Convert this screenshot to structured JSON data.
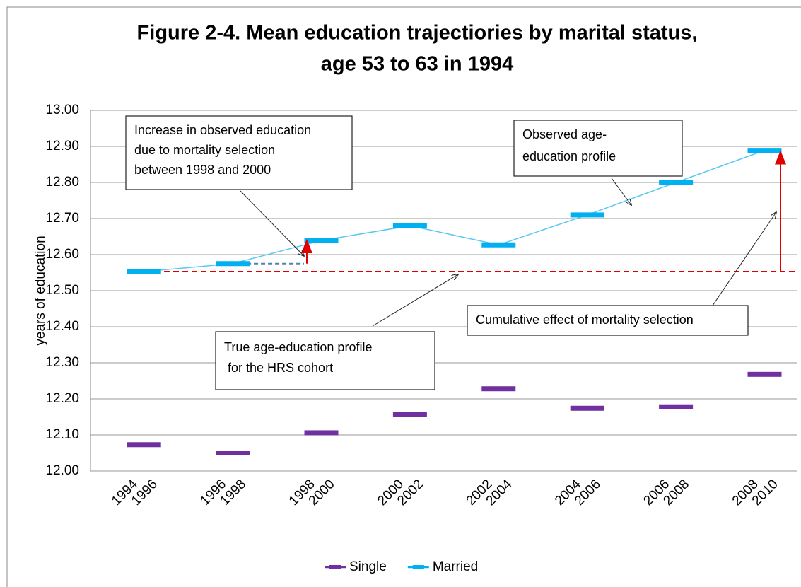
{
  "chart_data": {
    "type": "line",
    "title": [
      "Figure 2-4. Mean education trajectiories by marital status,",
      "age 53 to 63 in 1994"
    ],
    "y_label": "years of education",
    "categories": [
      [
        "1994",
        "1996"
      ],
      [
        "1996",
        "1998"
      ],
      [
        "1998",
        "2000"
      ],
      [
        "2000",
        "2002"
      ],
      [
        "2002",
        "2004"
      ],
      [
        "2004",
        "2006"
      ],
      [
        "2006",
        "2008"
      ],
      [
        "2008",
        "2010"
      ]
    ],
    "series": [
      {
        "name": "Single",
        "color": "#7030a0",
        "line": false,
        "values": [
          12.073,
          12.05,
          12.106,
          12.156,
          12.228,
          12.174,
          12.178,
          12.268
        ]
      },
      {
        "name": "Married",
        "color": "#00b0f0",
        "line": true,
        "values": [
          12.553,
          12.575,
          12.639,
          12.68,
          12.627,
          12.71,
          12.8,
          12.889
        ]
      }
    ],
    "ylim": [
      12.0,
      13.0
    ],
    "yticks": [
      {
        "value": 12.0,
        "label": "12.00"
      },
      {
        "value": 12.1,
        "label": "12.10"
      },
      {
        "value": 12.2,
        "label": "12.20"
      },
      {
        "value": 12.3,
        "label": "12.30"
      },
      {
        "value": 12.4,
        "label": "12.40"
      },
      {
        "value": 12.5,
        "label": "12.50"
      },
      {
        "value": 12.6,
        "label": "12.60"
      },
      {
        "value": 12.7,
        "label": "12.70"
      },
      {
        "value": 12.8,
        "label": "12.80"
      },
      {
        "value": 12.9,
        "label": "12.90"
      },
      {
        "value": 13.0,
        "label": "13.00"
      }
    ],
    "grid": true,
    "legend": "bottom",
    "annotations": [
      [
        "Increase in observed education",
        "due to mortality selection",
        "between 1998 and 2000"
      ],
      [
        "Observed age-",
        "education profile"
      ],
      [
        "Cumulative effect of mortality selection"
      ],
      [
        "True age-education profile",
        " for the HRS cohort"
      ]
    ]
  }
}
